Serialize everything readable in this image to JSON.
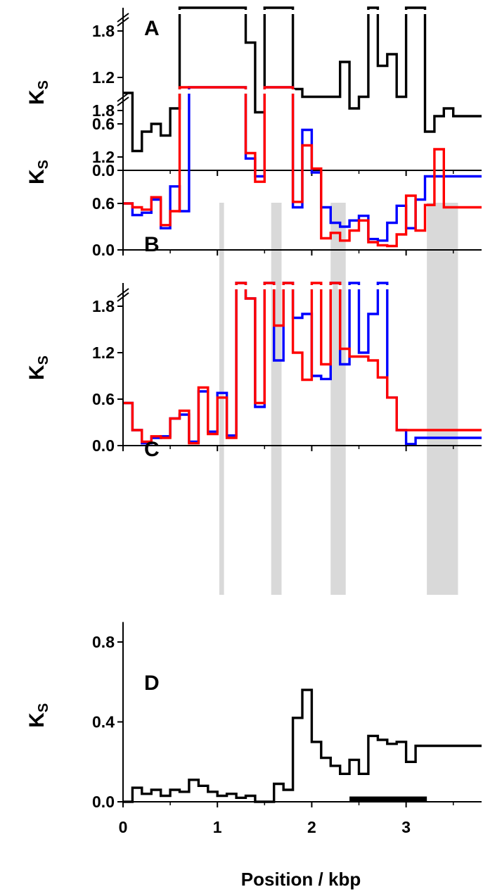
{
  "chart_data": {
    "type": "line",
    "layout": "four vertically stacked step-line panels sharing x axis; panels A-C have axis break (//) at the top",
    "xlabel": "Position / kbp",
    "x_ticks": [
      "0",
      "1",
      "2",
      "3"
    ],
    "x_tick_values": [
      0,
      1,
      2,
      3
    ],
    "xlim": [
      0,
      3.8
    ],
    "grid": false,
    "legend": "none",
    "colors": {
      "black": "#000000",
      "blue": "#0000ff",
      "red": "#ff0000",
      "shade": "#d9d9d9",
      "break": "#ffffff"
    },
    "shaded_regions_kbp": [
      [
        1.02,
        1.07
      ],
      [
        1.57,
        1.68
      ],
      [
        2.2,
        2.36
      ],
      [
        3.22,
        3.55
      ]
    ],
    "x_edges_kbp": [
      0.0,
      0.1,
      0.2,
      0.3,
      0.4,
      0.5,
      0.6,
      0.7,
      0.8,
      0.9,
      1.0,
      1.1,
      1.2,
      1.3,
      1.4,
      1.5,
      1.6,
      1.7,
      1.8,
      1.9,
      2.0,
      2.1,
      2.2,
      2.3,
      2.4,
      2.5,
      2.6,
      2.7,
      2.8,
      2.9,
      3.0,
      3.1,
      3.2,
      3.3,
      3.4,
      3.5,
      3.6,
      3.7,
      3.8
    ],
    "panels": [
      {
        "letter": "A",
        "ylabel": "K",
        "ylabel_sub": "S",
        "ylim": [
          0,
          2.1
        ],
        "y_ticks": [
          "0.0",
          "0.6",
          "1.2",
          "1.8"
        ],
        "y_tick_values": [
          0,
          0.6,
          1.2,
          1.8
        ],
        "axis_break": true,
        "series": [
          {
            "color": "#000000",
            "values": [
              1.0,
              0.25,
              0.5,
              0.6,
              0.45,
              0.8,
              2.1,
              2.1,
              2.1,
              2.1,
              2.1,
              2.1,
              2.1,
              1.65,
              0.75,
              2.1,
              2.1,
              2.1,
              1.05,
              0.95,
              0.95,
              0.95,
              0.95,
              1.4,
              0.8,
              0.95,
              2.1,
              1.35,
              1.5,
              0.95,
              2.1,
              2.1,
              0.5,
              0.7,
              0.8,
              0.7,
              0.7,
              0.7
            ]
          }
        ]
      },
      {
        "letter": "B",
        "ylabel": "K",
        "ylabel_sub": "S",
        "ylim": [
          0,
          2.1
        ],
        "y_ticks": [
          "0.0",
          "0.6",
          "1.2",
          "1.8"
        ],
        "y_tick_values": [
          0,
          0.6,
          1.2,
          1.8
        ],
        "axis_break": true,
        "series": [
          {
            "color": "#0000ff",
            "values": [
              0.6,
              0.45,
              0.48,
              0.65,
              0.28,
              0.82,
              0.5,
              2.1,
              2.1,
              2.1,
              2.1,
              2.1,
              2.1,
              1.18,
              0.95,
              2.1,
              2.1,
              2.1,
              0.55,
              1.55,
              1.0,
              0.55,
              0.35,
              0.3,
              0.38,
              0.44,
              0.14,
              0.12,
              0.35,
              0.57,
              0.28,
              0.65,
              0.95,
              0.95,
              0.95,
              0.95,
              0.95,
              0.95
            ]
          },
          {
            "color": "#ff0000",
            "values": [
              0.6,
              0.55,
              0.52,
              0.68,
              0.32,
              0.5,
              2.1,
              2.1,
              2.1,
              2.1,
              2.1,
              2.1,
              2.1,
              1.25,
              0.88,
              2.1,
              2.1,
              2.1,
              0.62,
              1.35,
              1.05,
              0.15,
              0.22,
              0.12,
              0.25,
              0.38,
              0.1,
              0.06,
              0.05,
              0.2,
              0.7,
              0.25,
              0.58,
              1.3,
              0.55,
              0.55,
              0.55,
              0.55
            ]
          }
        ]
      },
      {
        "letter": "C",
        "ylabel": "K",
        "ylabel_sub": "S",
        "ylim": [
          0,
          2.1
        ],
        "y_ticks": [
          "0.0",
          "0.6",
          "1.2",
          "1.8"
        ],
        "y_tick_values": [
          0,
          0.6,
          1.2,
          1.8
        ],
        "axis_break": true,
        "series": [
          {
            "color": "#0000ff",
            "values": [
              0.55,
              0.2,
              0.03,
              0.1,
              0.12,
              0.35,
              0.4,
              0.05,
              0.7,
              0.18,
              0.68,
              0.13,
              2.1,
              1.9,
              0.5,
              2.1,
              1.1,
              2.1,
              1.65,
              1.7,
              0.9,
              0.86,
              2.1,
              1.05,
              2.1,
              1.2,
              1.7,
              2.1,
              0.62,
              0.2,
              0.02,
              0.1,
              0.1,
              0.1,
              0.1,
              0.1,
              0.1,
              0.1
            ]
          },
          {
            "color": "#ff0000",
            "values": [
              0.55,
              0.2,
              0.05,
              0.12,
              0.1,
              0.35,
              0.45,
              0.03,
              0.75,
              0.15,
              0.62,
              0.1,
              2.1,
              1.9,
              0.55,
              2.1,
              1.55,
              2.1,
              1.2,
              0.85,
              2.1,
              1.05,
              2.1,
              1.25,
              1.15,
              1.15,
              1.1,
              0.88,
              0.62,
              0.2,
              0.2,
              0.2,
              0.2,
              0.2,
              0.2,
              0.2,
              0.2,
              0.2
            ]
          }
        ]
      },
      {
        "letter": "D",
        "ylabel": "K",
        "ylabel_sub": "S",
        "ylim": [
          0,
          0.9
        ],
        "y_ticks": [
          "0.0",
          "0.4",
          "0.8"
        ],
        "y_tick_values": [
          0,
          0.4,
          0.8
        ],
        "axis_break": false,
        "bar_segment_kbp": [
          2.4,
          3.22
        ],
        "series": [
          {
            "color": "#000000",
            "values": [
              0.0,
              0.07,
              0.04,
              0.06,
              0.03,
              0.06,
              0.05,
              0.11,
              0.08,
              0.05,
              0.03,
              0.04,
              0.02,
              0.03,
              0.0,
              0.0,
              0.09,
              0.06,
              0.42,
              0.56,
              0.3,
              0.22,
              0.18,
              0.14,
              0.21,
              0.14,
              0.33,
              0.31,
              0.29,
              0.3,
              0.2,
              0.28,
              0.28,
              0.28,
              0.28,
              0.28,
              0.28,
              0.28
            ]
          }
        ]
      }
    ]
  }
}
